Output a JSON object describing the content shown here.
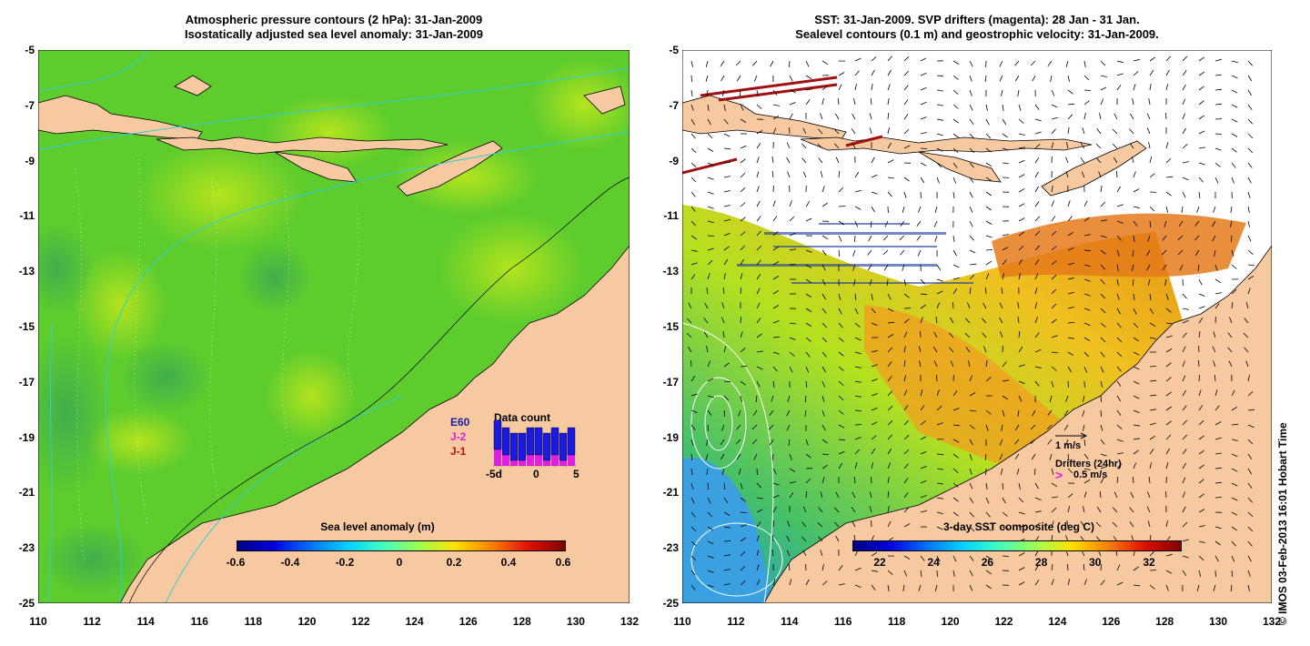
{
  "left_panel": {
    "title_line1": "Atmospheric pressure contours (2 hPa): 31-Jan-2009",
    "title_line2": "Isostatically adjusted sea level anomaly: 31-Jan-2009",
    "colorbar_label": "Sea level anomaly (m)",
    "colorbar_ticks": [
      "-0.6",
      "-0.4",
      "-0.2",
      "0",
      "0.2",
      "0.4",
      "0.6"
    ],
    "legend_labels": [
      "E60",
      "J-2",
      "J-1"
    ],
    "legend_colors": [
      "#1a1aa8",
      "#e020e0",
      "#c01010"
    ],
    "data_count": {
      "title": "Data count",
      "x_ticks": [
        "-5d",
        "0",
        "5"
      ],
      "bars_blue": [
        6,
        5,
        5,
        5,
        5,
        5,
        5,
        5,
        5,
        5
      ],
      "bars_magenta": [
        3,
        2,
        1,
        1,
        2,
        2,
        1,
        2,
        1,
        2
      ]
    }
  },
  "right_panel": {
    "title_line1": "SST: 31-Jan-2009. SVP drifters (magenta): 28 Jan - 31 Jan.",
    "title_line2": "Sealevel contours (0.1 m) and geostrophic velocity: 31-Jan-2009.",
    "colorbar_label": "3-day SST composite (deg C)",
    "colorbar_ticks": [
      "22",
      "24",
      "26",
      "28",
      "30",
      "32"
    ],
    "velocity_scale": "1 m/s",
    "drifters_label": "Drifters (24hr)",
    "drifters_speed": "0.5 m/s"
  },
  "axes": {
    "y_ticks": [
      "-5",
      "-7",
      "-9",
      "-11",
      "-13",
      "-15",
      "-17",
      "-19",
      "-21",
      "-23",
      "-25"
    ],
    "x_ticks": [
      "110",
      "112",
      "114",
      "116",
      "118",
      "120",
      "122",
      "124",
      "126",
      "128",
      "130",
      "132"
    ]
  },
  "credit": "© IMOS 03-Feb-2013 16:01 Hobart Time",
  "colors": {
    "land": "#f7c9a0",
    "ocean": "#66cc33",
    "white": "#ffffff"
  }
}
